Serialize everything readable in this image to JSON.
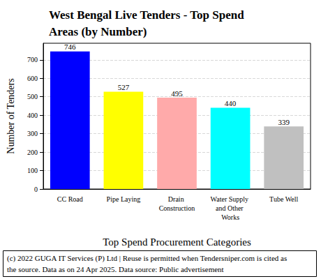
{
  "chart_data": {
    "type": "bar",
    "title": "West Bengal Live Tenders - Top Spend Areas (by Number)",
    "x_label": "Top Spend Procurement Categories",
    "y_label": "Number of Tenders",
    "categories": [
      "CC Road",
      "Pipe Laying",
      "Drain Construction",
      "Water Supply and Other Works",
      "Tube Well"
    ],
    "values": [
      746,
      527,
      495,
      440,
      339
    ],
    "colors": [
      "#0000ff",
      "#ffff00",
      "#ffaaaa",
      "#00ffff",
      "#c0c0c0"
    ],
    "ylim": [
      0,
      790
    ],
    "yticks": [
      0,
      100,
      200,
      300,
      400,
      500,
      600,
      700
    ],
    "grid": true,
    "data_labels": true,
    "annotations": [
      "(c) 2022 GUGA IT Services (P) Ltd | Reuse is permitted when Tendersniper.com is cited as the source. Data as on 24 Apr 2025. Data source: Public advertisement"
    ]
  }
}
